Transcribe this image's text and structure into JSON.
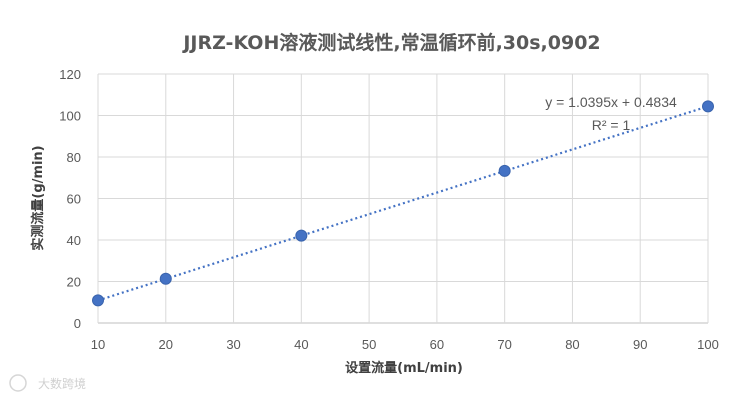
{
  "chart_data": {
    "type": "scatter",
    "title": "JJRZ-KOH溶液测试线性,常温循环前,30s,0902",
    "xlabel": "设置流量(mL/min)",
    "ylabel": "实测流量(g/min)",
    "xlim": [
      10,
      100
    ],
    "ylim": [
      0,
      120
    ],
    "x_ticks": [
      10,
      20,
      30,
      40,
      50,
      60,
      70,
      80,
      90,
      100
    ],
    "y_ticks": [
      0,
      20,
      40,
      60,
      80,
      100,
      120
    ],
    "grid": true,
    "series": [
      {
        "x": [
          10,
          20,
          40,
          70,
          100
        ],
        "y": [
          10.9,
          21.3,
          42.1,
          73.3,
          104.4
        ]
      }
    ],
    "trendline": {
      "type": "linear",
      "slope": 1.0395,
      "intercept": 0.4834,
      "style": "dotted"
    },
    "annotations": {
      "equation": "y = 1.0395x + 0.4834",
      "r_squared": "R² = 1"
    },
    "colors": {
      "series": "#4472c4",
      "grid": "#d9d9d9",
      "text": "#595959"
    }
  },
  "watermark": "大数跨境"
}
